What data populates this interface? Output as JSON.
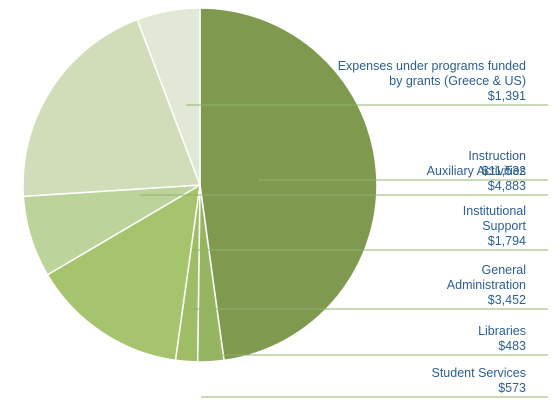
{
  "chart_data": {
    "type": "pie",
    "start_angle_deg": 0,
    "direction": "clockwise",
    "slices": [
      {
        "label_lines": [
          "Instruction"
        ],
        "value_label": "$11,532",
        "value": 11532,
        "color": "#7f9a4f"
      },
      {
        "label_lines": [
          "Student Services"
        ],
        "value_label": "$573",
        "value": 573,
        "color": "#95b560"
      },
      {
        "label_lines": [
          "Libraries"
        ],
        "value_label": "$483",
        "value": 483,
        "color": "#9ebd66"
      },
      {
        "label_lines": [
          "General",
          "Administration"
        ],
        "value_label": "$3,452",
        "value": 3452,
        "color": "#a6c46e"
      },
      {
        "label_lines": [
          "Institutional",
          "Support"
        ],
        "value_label": "$1,794",
        "value": 1794,
        "color": "#bcd39b"
      },
      {
        "label_lines": [
          "Auxiliary Activities"
        ],
        "value_label": "$4,883",
        "value": 4883,
        "color": "#d0ddb8"
      },
      {
        "label_lines": [
          "Expenses under programs funded",
          "by grants (Greece & US)"
        ],
        "value_label": "$1,391",
        "value": 1391,
        "color": "#e2e8d6"
      }
    ]
  }
}
